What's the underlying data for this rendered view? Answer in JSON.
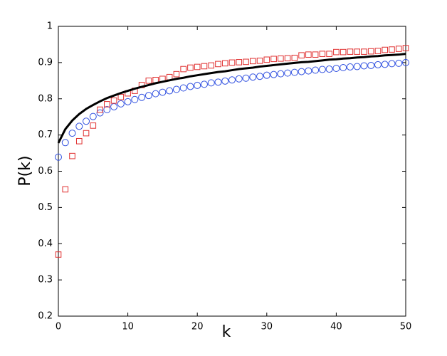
{
  "chart_data": {
    "type": "line",
    "x_label": "k",
    "y_label": "P(k)",
    "x": [
      0,
      1,
      2,
      3,
      4,
      5,
      6,
      7,
      8,
      9,
      10,
      11,
      12,
      13,
      14,
      15,
      16,
      17,
      18,
      19,
      20,
      21,
      22,
      23,
      24,
      25,
      26,
      27,
      28,
      29,
      30,
      31,
      32,
      33,
      34,
      35,
      36,
      37,
      38,
      39,
      40,
      41,
      42,
      43,
      44,
      45,
      46,
      47,
      48,
      49,
      50
    ],
    "series": [
      {
        "color": "#3050e0",
        "marker": "circle",
        "line": false,
        "values": [
          0.639,
          0.679,
          0.705,
          0.724,
          0.738,
          0.751,
          0.761,
          0.77,
          0.778,
          0.786,
          0.792,
          0.798,
          0.804,
          0.809,
          0.814,
          0.818,
          0.822,
          0.826,
          0.83,
          0.834,
          0.837,
          0.84,
          0.844,
          0.846,
          0.849,
          0.852,
          0.855,
          0.857,
          0.86,
          0.862,
          0.865,
          0.867,
          0.869,
          0.871,
          0.873,
          0.875,
          0.877,
          0.879,
          0.881,
          0.882,
          0.884,
          0.886,
          0.888,
          0.889,
          0.891,
          0.892,
          0.894,
          0.895,
          0.897,
          0.898,
          0.9
        ]
      },
      {
        "color": "#e03030",
        "marker": "square",
        "line": false,
        "values": [
          0.37,
          0.55,
          0.642,
          0.683,
          0.705,
          0.726,
          0.77,
          0.785,
          0.795,
          0.805,
          0.815,
          0.822,
          0.838,
          0.85,
          0.852,
          0.855,
          0.86,
          0.868,
          0.882,
          0.886,
          0.888,
          0.89,
          0.892,
          0.896,
          0.898,
          0.9,
          0.901,
          0.902,
          0.904,
          0.905,
          0.908,
          0.91,
          0.911,
          0.912,
          0.913,
          0.92,
          0.922,
          0.922,
          0.924,
          0.924,
          0.929,
          0.929,
          0.93,
          0.93,
          0.93,
          0.931,
          0.932,
          0.935,
          0.936,
          0.938,
          0.94
        ]
      },
      {
        "color": "#000000",
        "marker": null,
        "line": true,
        "values": [
          0.678,
          0.716,
          0.74,
          0.758,
          0.772,
          0.783,
          0.793,
          0.802,
          0.809,
          0.816,
          0.822,
          0.828,
          0.833,
          0.838,
          0.843,
          0.847,
          0.851,
          0.855,
          0.858,
          0.862,
          0.865,
          0.868,
          0.871,
          0.874,
          0.876,
          0.879,
          0.882,
          0.884,
          0.886,
          0.889,
          0.891,
          0.893,
          0.895,
          0.897,
          0.899,
          0.901,
          0.902,
          0.904,
          0.906,
          0.908,
          0.909,
          0.911,
          0.912,
          0.914,
          0.915,
          0.917,
          0.918,
          0.92,
          0.921,
          0.922,
          0.924
        ]
      }
    ],
    "xlim": [
      0,
      50
    ],
    "xticks": [
      0,
      10,
      20,
      30,
      40,
      50
    ],
    "ylim": [
      0.2,
      1
    ],
    "yticks": [
      0.2,
      0.3,
      0.4,
      0.5,
      0.6,
      0.7,
      0.8,
      0.9,
      1
    ],
    "grid": false
  }
}
